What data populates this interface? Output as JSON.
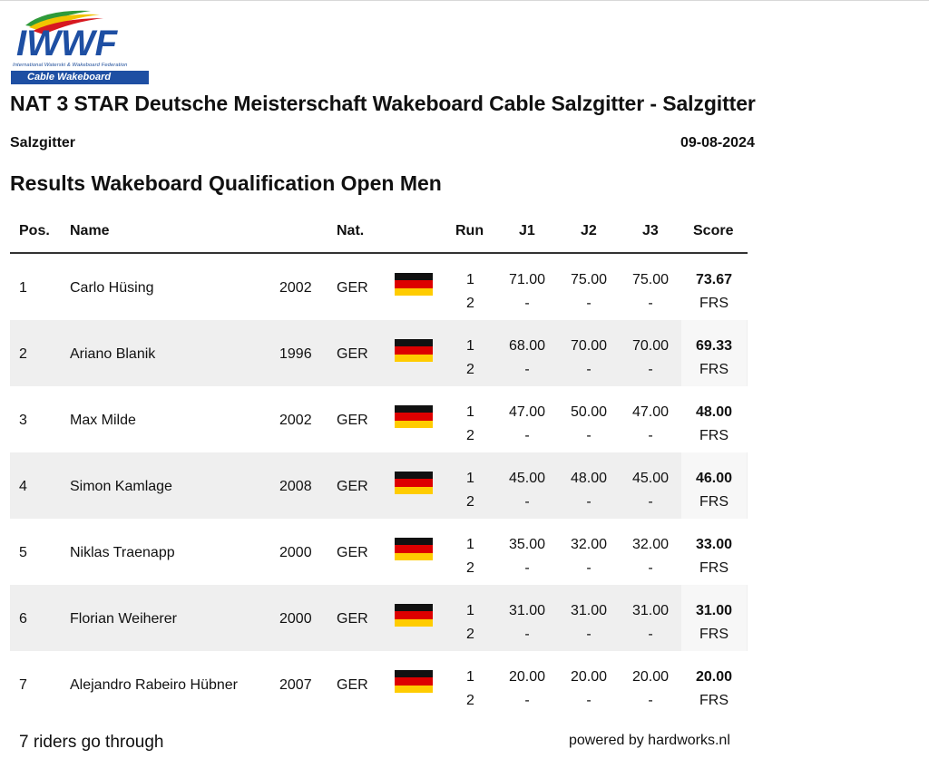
{
  "logo": {
    "text": "IWWF",
    "federation": "International Waterski & Wakeboard Federation",
    "banner": "Cable Wakeboard"
  },
  "event": {
    "title": "NAT 3 STAR Deutsche Meisterschaft Wakeboard Cable Salzgitter - Salzgitter",
    "location": "Salzgitter",
    "date": "09-08-2024"
  },
  "results_title": "Results Wakeboard Qualification Open Men",
  "columns": {
    "pos": "Pos.",
    "name": "Name",
    "nat": "Nat.",
    "run": "Run",
    "j1": "J1",
    "j2": "J2",
    "j3": "J3",
    "score": "Score"
  },
  "flag_colors": [
    "#111111",
    "#dd0000",
    "#ffcc00"
  ],
  "rows": [
    {
      "pos": "1",
      "name": "Carlo Hüsing",
      "year": "2002",
      "nat": "GER",
      "run1": "1",
      "run2": "2",
      "j1_1": "71.00",
      "j1_2": "-",
      "j2_1": "75.00",
      "j2_2": "-",
      "j3_1": "75.00",
      "j3_2": "-",
      "score": "73.67",
      "score2": "FRS"
    },
    {
      "pos": "2",
      "name": "Ariano Blanik",
      "year": "1996",
      "nat": "GER",
      "run1": "1",
      "run2": "2",
      "j1_1": "68.00",
      "j1_2": "-",
      "j2_1": "70.00",
      "j2_2": "-",
      "j3_1": "70.00",
      "j3_2": "-",
      "score": "69.33",
      "score2": "FRS"
    },
    {
      "pos": "3",
      "name": "Max Milde",
      "year": "2002",
      "nat": "GER",
      "run1": "1",
      "run2": "2",
      "j1_1": "47.00",
      "j1_2": "-",
      "j2_1": "50.00",
      "j2_2": "-",
      "j3_1": "47.00",
      "j3_2": "-",
      "score": "48.00",
      "score2": "FRS"
    },
    {
      "pos": "4",
      "name": "Simon Kamlage",
      "year": "2008",
      "nat": "GER",
      "run1": "1",
      "run2": "2",
      "j1_1": "45.00",
      "j1_2": "-",
      "j2_1": "48.00",
      "j2_2": "-",
      "j3_1": "45.00",
      "j3_2": "-",
      "score": "46.00",
      "score2": "FRS"
    },
    {
      "pos": "5",
      "name": "Niklas Traenapp",
      "year": "2000",
      "nat": "GER",
      "run1": "1",
      "run2": "2",
      "j1_1": "35.00",
      "j1_2": "-",
      "j2_1": "32.00",
      "j2_2": "-",
      "j3_1": "32.00",
      "j3_2": "-",
      "score": "33.00",
      "score2": "FRS"
    },
    {
      "pos": "6",
      "name": "Florian Weiherer",
      "year": "2000",
      "nat": "GER",
      "run1": "1",
      "run2": "2",
      "j1_1": "31.00",
      "j1_2": "-",
      "j2_1": "31.00",
      "j2_2": "-",
      "j3_1": "31.00",
      "j3_2": "-",
      "score": "31.00",
      "score2": "FRS"
    },
    {
      "pos": "7",
      "name": "Alejandro Rabeiro Hübner",
      "year": "2007",
      "nat": "GER",
      "run1": "1",
      "run2": "2",
      "j1_1": "20.00",
      "j1_2": "-",
      "j2_1": "20.00",
      "j2_2": "-",
      "j3_1": "20.00",
      "j3_2": "-",
      "score": "20.00",
      "score2": "FRS"
    }
  ],
  "footer": {
    "note": "7 riders go through",
    "powered_by": "powered by hardworks.nl"
  }
}
